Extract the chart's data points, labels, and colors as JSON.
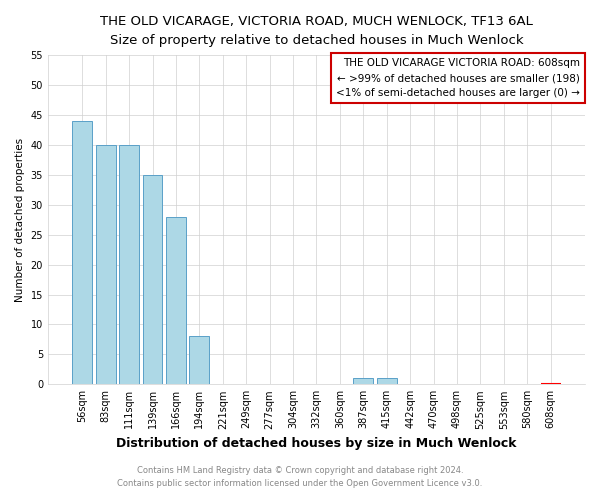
{
  "title": "THE OLD VICARAGE, VICTORIA ROAD, MUCH WENLOCK, TF13 6AL",
  "subtitle": "Size of property relative to detached houses in Much Wenlock",
  "xlabel": "Distribution of detached houses by size in Much Wenlock",
  "ylabel": "Number of detached properties",
  "bar_labels": [
    "56sqm",
    "83sqm",
    "111sqm",
    "139sqm",
    "166sqm",
    "194sqm",
    "221sqm",
    "249sqm",
    "277sqm",
    "304sqm",
    "332sqm",
    "360sqm",
    "387sqm",
    "415sqm",
    "442sqm",
    "470sqm",
    "498sqm",
    "525sqm",
    "553sqm",
    "580sqm",
    "608sqm"
  ],
  "bar_values": [
    44,
    40,
    40,
    35,
    28,
    8,
    0,
    0,
    0,
    0,
    0,
    0,
    1,
    1,
    0,
    0,
    0,
    0,
    0,
    0,
    0
  ],
  "bar_color": "#add8e6",
  "bar_edge_color": "#5aa0c8",
  "highlight_index": 20,
  "highlight_bar_edge_color": "#ff0000",
  "ylim": [
    0,
    55
  ],
  "yticks": [
    0,
    5,
    10,
    15,
    20,
    25,
    30,
    35,
    40,
    45,
    50,
    55
  ],
  "annotation_box_text": [
    "THE OLD VICARAGE VICTORIA ROAD: 608sqm",
    "← >99% of detached houses are smaller (198)",
    "<1% of semi-detached houses are larger (0) →"
  ],
  "annotation_box_color": "#ffffff",
  "annotation_box_edge_color": "#cc0000",
  "footer_line1": "Contains HM Land Registry data © Crown copyright and database right 2024.",
  "footer_line2": "Contains public sector information licensed under the Open Government Licence v3.0.",
  "title_fontsize": 9.5,
  "subtitle_fontsize": 8.5,
  "xlabel_fontsize": 9,
  "ylabel_fontsize": 7.5,
  "tick_fontsize": 7,
  "footer_fontsize": 6,
  "annotation_fontsize": 7.5
}
